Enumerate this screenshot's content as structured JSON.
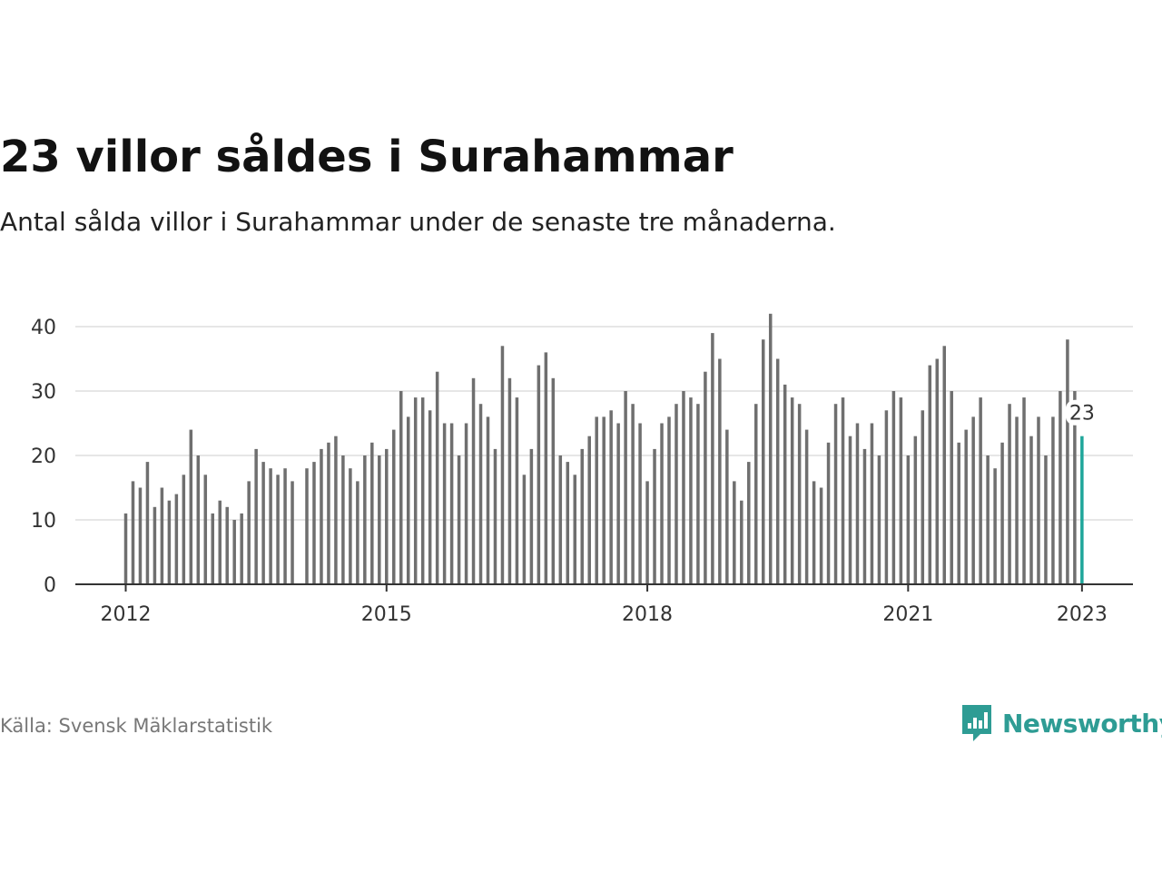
{
  "title": "23 villor såldes i Surahammar",
  "subtitle": "Antal sålda villor i Surahammar under de senaste tre månaderna.",
  "source": "Källa: Svensk Mäklarstatistik",
  "brand": {
    "name": "Newsworthy",
    "color": "#2e9c94",
    "icon": "bar-chart-speech-bubble-icon"
  },
  "chart_data": {
    "type": "bar",
    "title": "",
    "xlabel": "",
    "ylabel": "",
    "ylim": [
      0,
      42
    ],
    "y_ticks": [
      0,
      10,
      20,
      30,
      40
    ],
    "grid": true,
    "bar_color": "#6f6f6f",
    "highlight_color": "#1fa69a",
    "highlight_label": "23",
    "x_ticks": [
      {
        "label": "2012",
        "index": 0
      },
      {
        "label": "2015",
        "index": 36
      },
      {
        "label": "2018",
        "index": 72
      },
      {
        "label": "2021",
        "index": 108
      },
      {
        "label": "2023",
        "index": 132
      }
    ],
    "start": "2012-01",
    "frequency": "monthly",
    "values": [
      11,
      16,
      15,
      19,
      12,
      15,
      13,
      14,
      17,
      24,
      20,
      17,
      11,
      13,
      12,
      10,
      11,
      16,
      21,
      19,
      18,
      17,
      18,
      16,
      null,
      18,
      19,
      21,
      22,
      23,
      20,
      18,
      16,
      20,
      22,
      20,
      21,
      24,
      30,
      26,
      29,
      29,
      27,
      33,
      25,
      25,
      20,
      25,
      32,
      28,
      26,
      21,
      37,
      32,
      29,
      17,
      21,
      34,
      36,
      32,
      20,
      19,
      17,
      21,
      23,
      26,
      26,
      27,
      25,
      30,
      28,
      25,
      16,
      21,
      25,
      26,
      28,
      30,
      29,
      28,
      33,
      39,
      35,
      24,
      16,
      13,
      19,
      28,
      38,
      42,
      35,
      31,
      29,
      28,
      24,
      16,
      15,
      22,
      28,
      29,
      23,
      25,
      21,
      25,
      20,
      27,
      30,
      29,
      20,
      23,
      27,
      34,
      35,
      37,
      30,
      22,
      24,
      26,
      29,
      20,
      18,
      22,
      28,
      26,
      29,
      23,
      26,
      20,
      26,
      30,
      38,
      30,
      23
    ]
  }
}
